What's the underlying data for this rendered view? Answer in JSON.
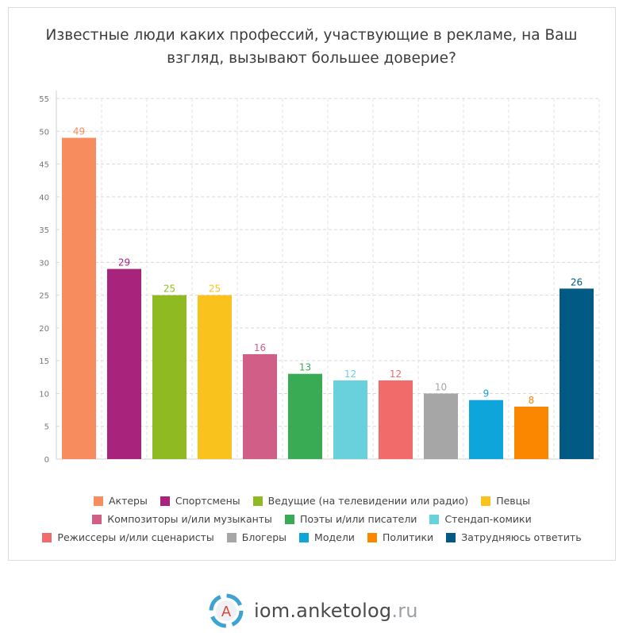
{
  "chart_data": {
    "type": "bar",
    "title": "Известные люди каких профессий, участвующие в рекламе, на Ваш взгляд, вызывают большее доверие?",
    "categories": [
      "Актеры",
      "Спортсмены",
      "Ведущие (на телевидении или радио)",
      "Певцы",
      "Композиторы и/или музыканты",
      "Поэты и/или писатели",
      "Стендап-комики",
      "Режиссеры и/или сценаристы",
      "Блогеры",
      "Модели",
      "Политики",
      "Затрудняюсь ответить"
    ],
    "values": [
      49,
      29,
      25,
      25,
      16,
      13,
      12,
      12,
      10,
      9,
      8,
      26
    ],
    "value_labels": [
      "49",
      "29",
      "25",
      "25",
      "16",
      "13",
      "12",
      "12",
      "10",
      "9",
      "8",
      "26"
    ],
    "colors": [
      "#f78c5f",
      "#a8237b",
      "#8fba22",
      "#f9c21d",
      "#d05e86",
      "#3aab55",
      "#68d1dc",
      "#f26b6b",
      "#a6a6a6",
      "#0ea5db",
      "#fb8700",
      "#005a83"
    ],
    "ylim": [
      0,
      55
    ],
    "yticks": [
      "0",
      "5",
      "10",
      "15",
      "20",
      "25",
      "30",
      "35",
      "40",
      "45",
      "50",
      "55"
    ],
    "ytick_values": [
      0,
      5,
      10,
      15,
      20,
      25,
      30,
      35,
      40,
      45,
      50,
      55
    ],
    "grid": true,
    "legend_position": "bottom",
    "legend_rows": [
      [
        0,
        1,
        2,
        3
      ],
      [
        4,
        5,
        6
      ],
      [
        7,
        8,
        9,
        10,
        11
      ]
    ]
  },
  "footer": {
    "logo_letter": "A",
    "brand_main": "iom.anketolog",
    "brand_tld": ".ru"
  }
}
